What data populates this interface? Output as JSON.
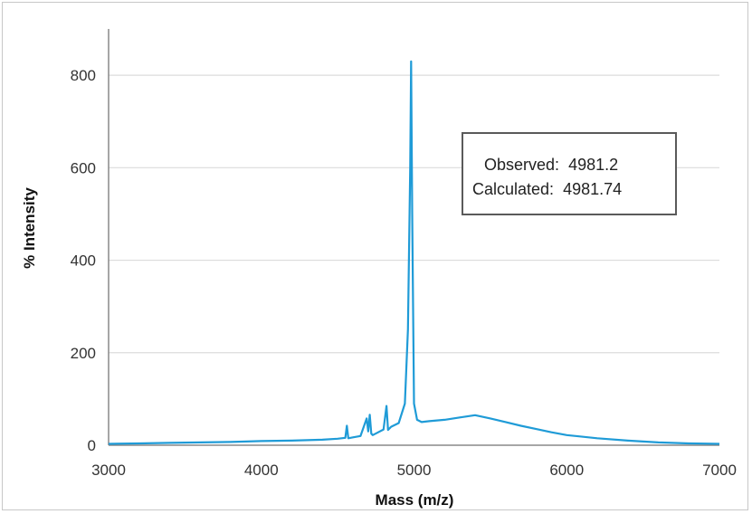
{
  "chart_data": {
    "type": "line",
    "title": "",
    "xlabel": "Mass (m/z)",
    "ylabel": "% Intensity",
    "xlim": [
      3000,
      7000
    ],
    "ylim": [
      0,
      900
    ],
    "xticks": [
      3000,
      4000,
      5000,
      6000,
      7000
    ],
    "yticks": [
      0,
      200,
      400,
      600,
      800
    ],
    "x_tick_labels": [
      "3000",
      "4000",
      "5000",
      "6000",
      "7000"
    ],
    "y_tick_labels": [
      "0",
      "200",
      "400",
      "600",
      "800"
    ],
    "grid": "horizontal",
    "legend": "none",
    "series_color": "#1f9bd7",
    "series": [
      {
        "x": [
          3000,
          3200,
          3400,
          3600,
          3800,
          4000,
          4200,
          4400,
          4500,
          4550,
          4560,
          4570,
          4600,
          4650,
          4690,
          4700,
          4710,
          4720,
          4730,
          4760,
          4800,
          4820,
          4830,
          4850,
          4900,
          4940,
          4960,
          4975,
          4981,
          4988,
          5000,
          5020,
          5050,
          5100,
          5200,
          5300,
          5400,
          5500,
          5600,
          5700,
          5800,
          5900,
          6000,
          6200,
          6400,
          6600,
          6800,
          7000
        ],
        "y": [
          3,
          4,
          5,
          6,
          7,
          9,
          10,
          12,
          14,
          16,
          42,
          15,
          17,
          20,
          58,
          30,
          66,
          25,
          22,
          27,
          34,
          85,
          33,
          40,
          48,
          90,
          250,
          600,
          830,
          500,
          90,
          55,
          50,
          52,
          55,
          60,
          65,
          58,
          50,
          42,
          35,
          28,
          22,
          15,
          10,
          6,
          4,
          3
        ]
      }
    ],
    "annotation": {
      "observed_label": "Observed:",
      "observed_value": "4981.2",
      "calculated_label": "Calculated:",
      "calculated_value": "4981.74"
    }
  }
}
